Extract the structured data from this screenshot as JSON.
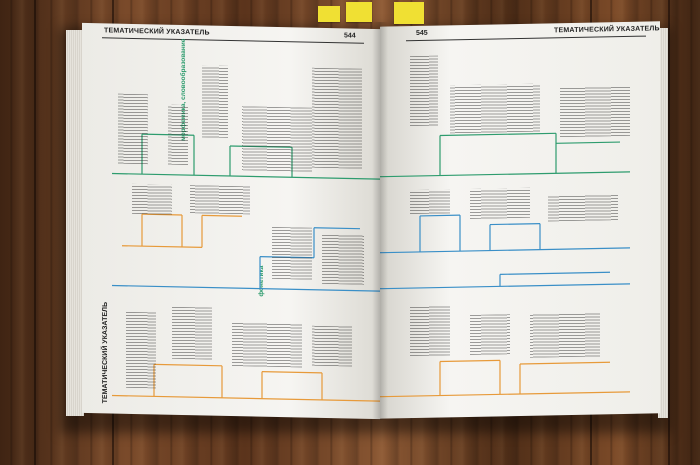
{
  "book": {
    "left_header": "ТЕМАТИЧЕСКИЙ УКАЗАТЕЛЬ",
    "left_page_number": "544",
    "right_page_number": "545",
    "right_header": "ТЕМАТИЧЕСКИЙ УКАЗАТЕЛЬ",
    "left_vertical_title": "ТЕМАТИЧЕСКИЙ УКАЗАТЕЛЬ",
    "section_morphology": "морфемика, словообразование",
    "section_phonetics": "фонетика"
  },
  "colors": {
    "green": "#2e9c6e",
    "blue": "#3a8fc7",
    "orange": "#e79a3a",
    "tab_yellow": "#f0e033"
  }
}
